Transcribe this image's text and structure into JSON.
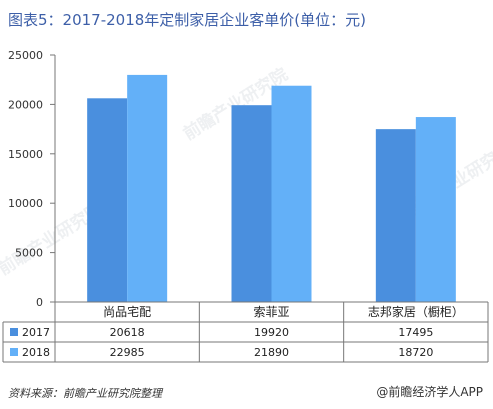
{
  "title": "图表5：2017-2018年定制家居企业客单价(单位：元)",
  "source": "资料来源：前瞻产业研究院整理",
  "brand": "@前瞻经济学人APP",
  "watermark": "前瞻产业研究院",
  "chart_data": {
    "type": "bar",
    "categories": [
      "尚品宅配",
      "索菲亚",
      "志邦家居（橱柜）"
    ],
    "series": [
      {
        "name": "2017",
        "values": [
          20618,
          19920,
          17495
        ],
        "color": "#4a8fde"
      },
      {
        "name": "2018",
        "values": [
          22985,
          21890,
          18720
        ],
        "color": "#63b0f8"
      }
    ],
    "ylim": [
      0,
      25000
    ],
    "yticks": [
      "0",
      "5000",
      "10000",
      "15000",
      "20000",
      "25000"
    ],
    "grid": false,
    "legend": "data-table"
  }
}
